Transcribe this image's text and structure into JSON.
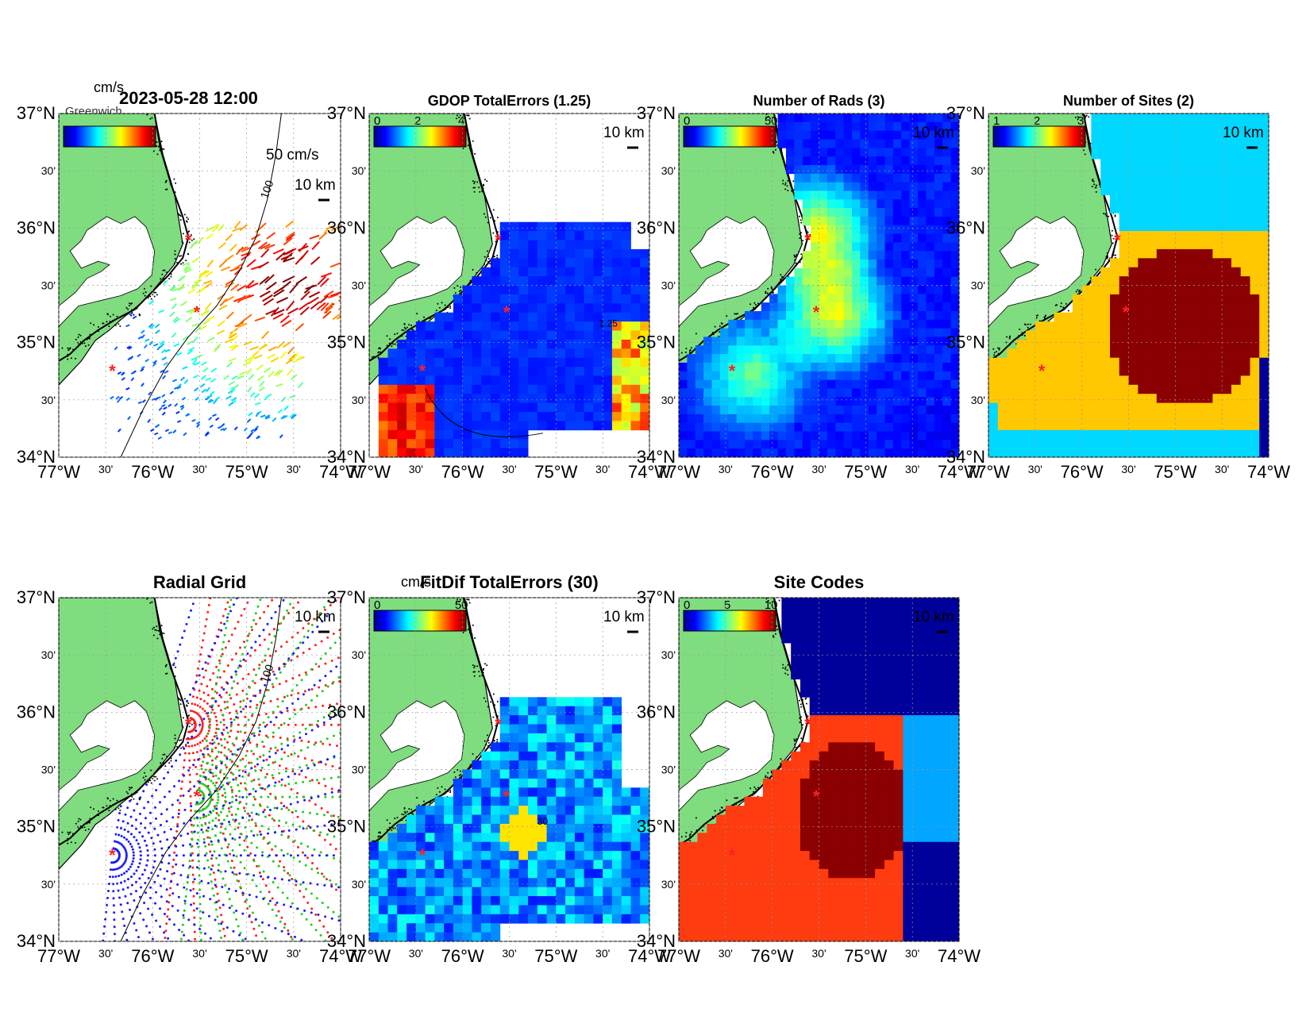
{
  "figure": {
    "timestamp": "2023-05-28 12:00",
    "units_label": "cm/s",
    "overlap_text": "Greenwich",
    "lon_ticks": [
      "77°W",
      "30'",
      "76°W",
      "30'",
      "75°W",
      "30'",
      "74°W"
    ],
    "lat_ticks": [
      "37°N",
      "30'",
      "36°N",
      "30'",
      "35°N",
      "30'",
      "34°N"
    ],
    "scale_bar_label": "10 km",
    "isobath_label": "100"
  },
  "panels": [
    {
      "id": "currents",
      "title": "",
      "colorbar_ticks": [],
      "contour_label": "",
      "vector_scale_label": "50 cm/s",
      "cbar_units": "cm/s"
    },
    {
      "id": "gdop",
      "title": "GDOP TotalErrors (1.25)",
      "colorbar_ticks": [
        "0",
        "2",
        "4"
      ],
      "contour_label": "1.25",
      "vector_scale_label": "",
      "cbar_units": ""
    },
    {
      "id": "nrads",
      "title": "Number of Rads (3)",
      "colorbar_ticks": [
        "0",
        "50"
      ],
      "contour_label": "3",
      "vector_scale_label": "",
      "cbar_units": ""
    },
    {
      "id": "nsites",
      "title": "Number of Sites (2)",
      "colorbar_ticks": [
        "1",
        "2",
        "3"
      ],
      "contour_label": "2",
      "vector_scale_label": "",
      "cbar_units": ""
    },
    {
      "id": "radgrid",
      "title": "Radial Grid",
      "colorbar_ticks": [],
      "contour_label": "",
      "vector_scale_label": "",
      "cbar_units": ""
    },
    {
      "id": "fitdif",
      "title": "FitDif TotalErrors (30)",
      "colorbar_ticks": [
        "0",
        "50"
      ],
      "contour_label": "30",
      "vector_scale_label": "",
      "cbar_units": "cm/s"
    },
    {
      "id": "sitecodes",
      "title": "Site Codes",
      "colorbar_ticks": [
        "0",
        "5",
        "10"
      ],
      "contour_label": "",
      "vector_scale_label": "",
      "cbar_units": ""
    }
  ],
  "colors": {
    "land": "#7fdc7f",
    "coast": "#000000",
    "site_marker": "#ff2020",
    "site_red": "#ff3b10",
    "site_dark": "#8b0000",
    "site_sky": "#00a6ff",
    "site_navy": "#00009a",
    "nsites_cyan": "#00d8ff",
    "nsites_gold": "#ffc800",
    "nsites_maroon": "#8b0000",
    "grid_red": "#ff2020",
    "grid_blue": "#1a1aff",
    "grid_green": "#22cc22"
  }
}
